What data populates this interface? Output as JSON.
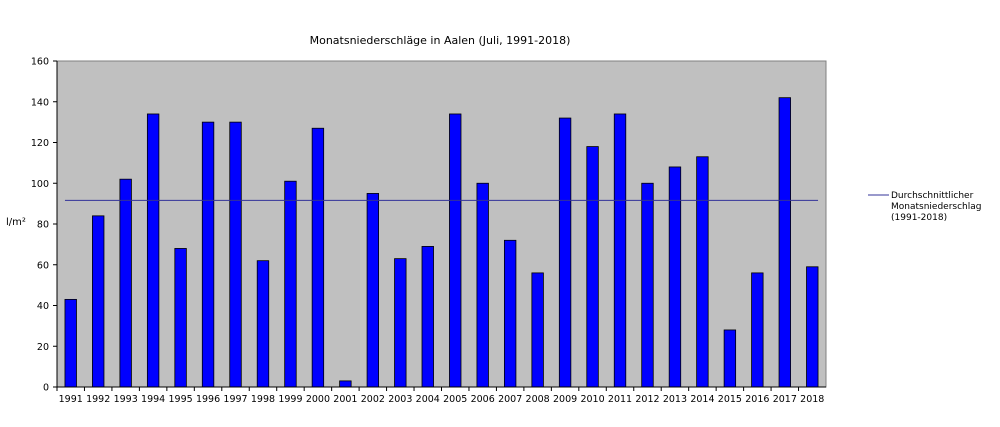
{
  "chart_data": {
    "type": "bar",
    "title": "Monatsniederschläge in Aalen (Juli, 1991-2018)",
    "xlabel": "",
    "ylabel": "l/m²",
    "ylim": [
      0,
      160
    ],
    "yticks": [
      0,
      20,
      40,
      60,
      80,
      100,
      120,
      140,
      160
    ],
    "categories": [
      "1991",
      "1992",
      "1993",
      "1994",
      "1995",
      "1996",
      "1997",
      "1998",
      "1999",
      "2000",
      "2001",
      "2002",
      "2003",
      "2004",
      "2005",
      "2006",
      "2007",
      "2008",
      "2009",
      "2010",
      "2011",
      "2012",
      "2013",
      "2014",
      "2015",
      "2016",
      "2017",
      "2018"
    ],
    "values": [
      43,
      84,
      102,
      134,
      68,
      130,
      130,
      62,
      101,
      127,
      3,
      95,
      63,
      69,
      134,
      100,
      72,
      56,
      132,
      118,
      134,
      100,
      108,
      113,
      28,
      56,
      142,
      59
    ],
    "bar_color": "#0000ff",
    "plot_background": "#c0c0c0",
    "grid": false,
    "reference_line": {
      "value": 91.6,
      "color": "#333399",
      "legend_lines": [
        "Durchschnittlicher",
        "Monatsniederschlag",
        "(1991-2018)"
      ]
    },
    "legend_position": "right"
  }
}
